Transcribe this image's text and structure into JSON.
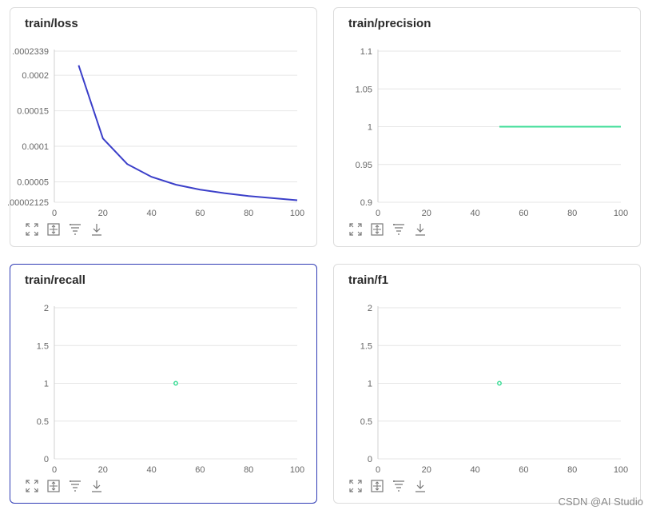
{
  "colors": {
    "loss_line": "#3b3fc9",
    "metric_line": "#3ddc97",
    "grid": "#e6e6e6",
    "active_border": "#2f3bb5"
  },
  "toolbar_icons": [
    "expand-icon",
    "fit-icon",
    "filter-icon",
    "download-icon"
  ],
  "watermark": "CSDN @AI Studio",
  "chart_data": [
    {
      "type": "line",
      "title": "train/loss",
      "xlabel": "",
      "ylabel": "",
      "xlim": [
        0,
        100
      ],
      "ylim": [
        2.125e-05,
        0.0002339
      ],
      "xticks": [
        "0",
        "20",
        "40",
        "60",
        "80",
        "100"
      ],
      "xtick_values": [
        0,
        20,
        40,
        60,
        80,
        100
      ],
      "yticks": [
        ".0002339",
        "0.0002",
        "0.00015",
        "0.0001",
        "0.00005",
        ".00002125"
      ],
      "ytick_values": [
        0.0002339,
        0.0002,
        0.00015,
        0.0001,
        5e-05,
        2.125e-05
      ],
      "grid": true,
      "series": [
        {
          "x": [
            10,
            20,
            30,
            40,
            50,
            60,
            70,
            80,
            90,
            100
          ],
          "y": [
            0.000214,
            0.000111,
            7.5e-05,
            5.7e-05,
            4.6e-05,
            3.9e-05,
            3.4e-05,
            3e-05,
            2.7e-05,
            2.4e-05
          ]
        }
      ]
    },
    {
      "type": "line",
      "title": "train/precision",
      "xlabel": "",
      "ylabel": "",
      "xlim": [
        0,
        100
      ],
      "ylim": [
        0.9,
        1.1
      ],
      "xticks": [
        "0",
        "20",
        "40",
        "60",
        "80",
        "100"
      ],
      "xtick_values": [
        0,
        20,
        40,
        60,
        80,
        100
      ],
      "yticks": [
        "1.1",
        "1.05",
        "1",
        "0.95",
        "0.9"
      ],
      "ytick_values": [
        1.1,
        1.05,
        1,
        0.95,
        0.9
      ],
      "grid": true,
      "series": [
        {
          "x": [
            50,
            100
          ],
          "y": [
            1,
            1
          ]
        }
      ]
    },
    {
      "type": "scatter",
      "title": "train/recall",
      "xlabel": "",
      "ylabel": "",
      "xlim": [
        0,
        100
      ],
      "ylim": [
        0,
        2
      ],
      "xticks": [
        "0",
        "20",
        "40",
        "60",
        "80",
        "100"
      ],
      "xtick_values": [
        0,
        20,
        40,
        60,
        80,
        100
      ],
      "yticks": [
        "2",
        "1.5",
        "1",
        "0.5",
        "0"
      ],
      "ytick_values": [
        2,
        1.5,
        1,
        0.5,
        0
      ],
      "grid": true,
      "series": [
        {
          "x": [
            50
          ],
          "y": [
            1
          ]
        }
      ]
    },
    {
      "type": "scatter",
      "title": "train/f1",
      "xlabel": "",
      "ylabel": "",
      "xlim": [
        0,
        100
      ],
      "ylim": [
        0,
        2
      ],
      "xticks": [
        "0",
        "20",
        "40",
        "60",
        "80",
        "100"
      ],
      "xtick_values": [
        0,
        20,
        40,
        60,
        80,
        100
      ],
      "yticks": [
        "2",
        "1.5",
        "1",
        "0.5",
        "0"
      ],
      "ytick_values": [
        2,
        1.5,
        1,
        0.5,
        0
      ],
      "grid": true,
      "series": [
        {
          "x": [
            50
          ],
          "y": [
            1
          ]
        }
      ]
    }
  ]
}
